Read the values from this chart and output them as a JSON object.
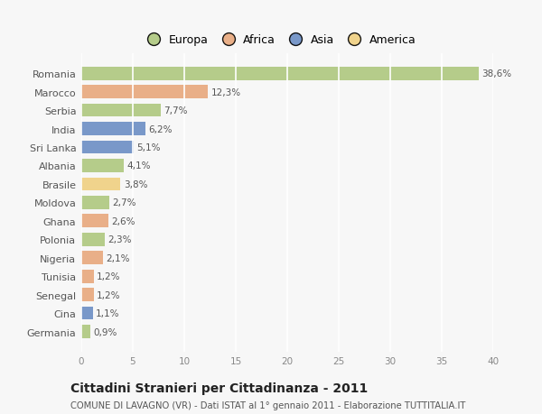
{
  "categories": [
    "Romania",
    "Marocco",
    "Serbia",
    "India",
    "Sri Lanka",
    "Albania",
    "Brasile",
    "Moldova",
    "Ghana",
    "Polonia",
    "Nigeria",
    "Tunisia",
    "Senegal",
    "Cina",
    "Germania"
  ],
  "values": [
    38.6,
    12.3,
    7.7,
    6.2,
    5.1,
    4.1,
    3.8,
    2.7,
    2.6,
    2.3,
    2.1,
    1.2,
    1.2,
    1.1,
    0.9
  ],
  "labels": [
    "38,6%",
    "12,3%",
    "7,7%",
    "6,2%",
    "5,1%",
    "4,1%",
    "3,8%",
    "2,7%",
    "2,6%",
    "2,3%",
    "2,1%",
    "1,2%",
    "1,2%",
    "1,1%",
    "0,9%"
  ],
  "continents": [
    "Europa",
    "Africa",
    "Europa",
    "Asia",
    "Asia",
    "Europa",
    "America",
    "Europa",
    "Africa",
    "Europa",
    "Africa",
    "Africa",
    "Africa",
    "Asia",
    "Europa"
  ],
  "colors": {
    "Europa": "#aec87e",
    "Africa": "#e8a87c",
    "Asia": "#6b8ec4",
    "America": "#f0d080"
  },
  "legend_labels": [
    "Europa",
    "Africa",
    "Asia",
    "America"
  ],
  "legend_colors": [
    "#aec87e",
    "#e8a87c",
    "#6b8ec4",
    "#f0d080"
  ],
  "title": "Cittadini Stranieri per Cittadinanza - 2011",
  "subtitle": "COMUNE DI LAVAGNO (VR) - Dati ISTAT al 1° gennaio 2011 - Elaborazione TUTTITALIA.IT",
  "xlim": [
    0,
    40
  ],
  "xticks": [
    0,
    5,
    10,
    15,
    20,
    25,
    30,
    35,
    40
  ],
  "background_color": "#f7f7f7",
  "grid_color": "#ffffff",
  "bar_height": 0.72
}
